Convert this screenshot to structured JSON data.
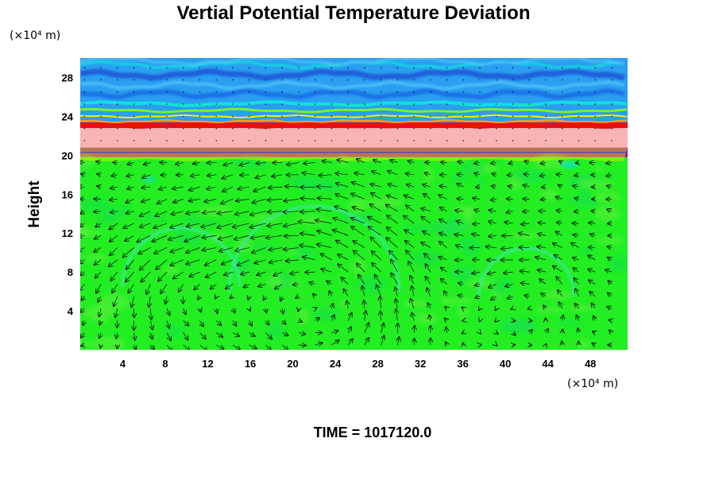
{
  "chart_data": {
    "type": "heatmap",
    "title": "Vertial Potential Temperature Deviation",
    "ylabel": "Height",
    "xlabel": "",
    "x_unit": "(×10⁴ m)",
    "y_unit": "(×10⁴ m)",
    "xlim": [
      0,
      51.5
    ],
    "ylim": [
      0,
      30
    ],
    "x_ticks": [
      "4",
      "8",
      "12",
      "16",
      "20",
      "24",
      "28",
      "32",
      "36",
      "40",
      "44",
      "48"
    ],
    "y_ticks": [
      "4",
      "8",
      "12",
      "16",
      "20",
      "24",
      "28"
    ],
    "grid": false,
    "footer": "TIME = 1017120.0",
    "layers": [
      {
        "y0": 0,
        "y1": 19.8,
        "field": "green",
        "color": "#22ee22"
      },
      {
        "y0": 19.8,
        "y1": 20.8,
        "field": "purple band",
        "color": "#9010a0"
      },
      {
        "y0": 20.8,
        "y1": 22.8,
        "field": "pink band",
        "color": "#f8b4b4"
      },
      {
        "y0": 22.8,
        "y1": 23.4,
        "field": "red/orange edge",
        "color": "#e81010"
      },
      {
        "y0": 23.4,
        "y1": 30,
        "field": "blue/cyan waves",
        "color": "#2a9ef0"
      }
    ],
    "vortices": [
      {
        "x": 9.5,
        "y": 6.5,
        "r": 5.5
      },
      {
        "x": 22,
        "y": 6,
        "r": 8
      },
      {
        "x": 42,
        "y": 5.5,
        "r": 4.5
      }
    ],
    "colors": {
      "green": "#22ee22",
      "green_light": "#5cf03a",
      "cyan": "#10e0e0",
      "blue": "#1a6ee6",
      "light_blue": "#50c0f8",
      "pink": "#f8b4b4",
      "red": "#e81010",
      "orange": "#ffa010",
      "yellow": "#f0f000",
      "purple": "#9010a0"
    }
  }
}
